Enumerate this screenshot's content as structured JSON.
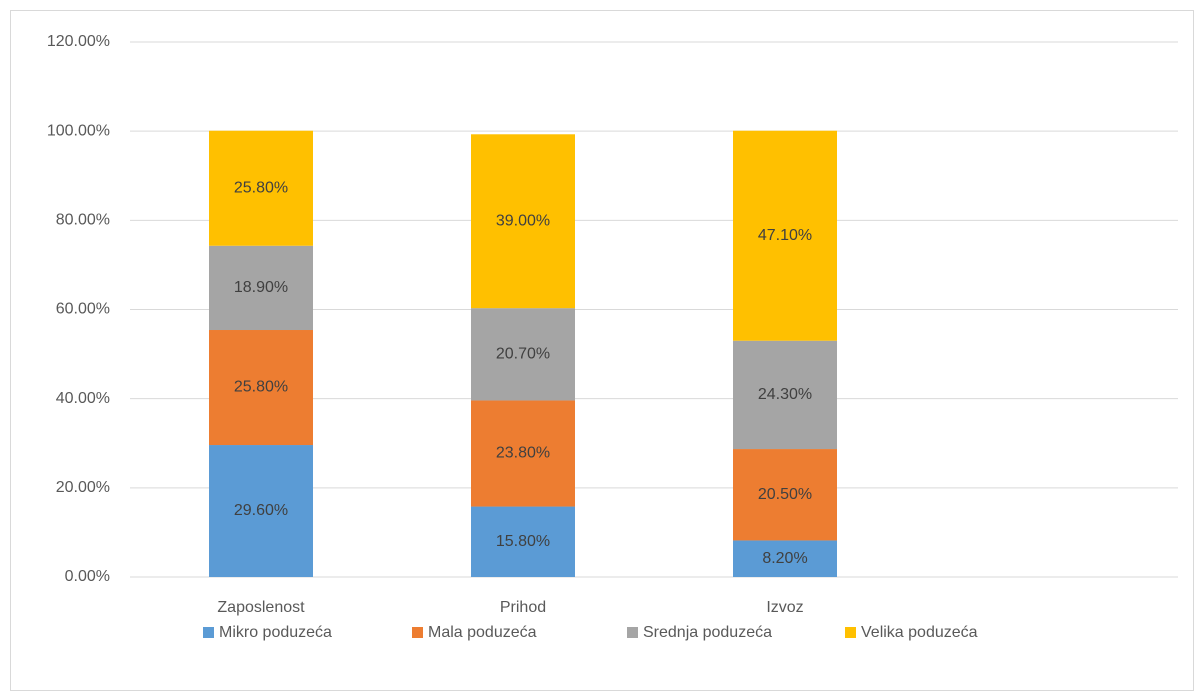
{
  "chart_data": {
    "type": "stacked_bar",
    "categories": [
      "Zaposlenost",
      "Prihod",
      "Izvoz",
      null
    ],
    "series": [
      {
        "name": "Mikro poduzeća",
        "color": "#5b9bd5",
        "values": [
          29.6,
          15.8,
          8.2,
          null
        ],
        "value_labels": [
          "29.60%",
          "15.80%",
          "8.20%",
          null
        ]
      },
      {
        "name": "Mala poduzeća",
        "color": "#ed7d31",
        "values": [
          25.8,
          23.8,
          20.5,
          null
        ],
        "value_labels": [
          "25.80%",
          "23.80%",
          "20.50%",
          null
        ]
      },
      {
        "name": "Srednja poduzeća",
        "color": "#a5a5a5",
        "values": [
          18.9,
          20.7,
          24.3,
          null
        ],
        "value_labels": [
          "18.90%",
          "20.70%",
          "24.30%",
          null
        ]
      },
      {
        "name": "Velika poduzeća",
        "color": "#ffc000",
        "values": [
          25.8,
          39.0,
          47.1,
          null
        ],
        "value_labels": [
          "25.80%",
          "39.00%",
          "47.10%",
          null
        ]
      }
    ],
    "ylim": [
      0,
      120
    ],
    "yticks": [
      {
        "value": 0,
        "label": "0.00%"
      },
      {
        "value": 20,
        "label": "20.00%"
      },
      {
        "value": 40,
        "label": "40.00%"
      },
      {
        "value": 60,
        "label": "60.00%"
      },
      {
        "value": 80,
        "label": "80.00%"
      },
      {
        "value": 100,
        "label": "100.00%"
      },
      {
        "value": 120,
        "label": "120.00%"
      }
    ],
    "grid": true,
    "legend": "bottom"
  }
}
